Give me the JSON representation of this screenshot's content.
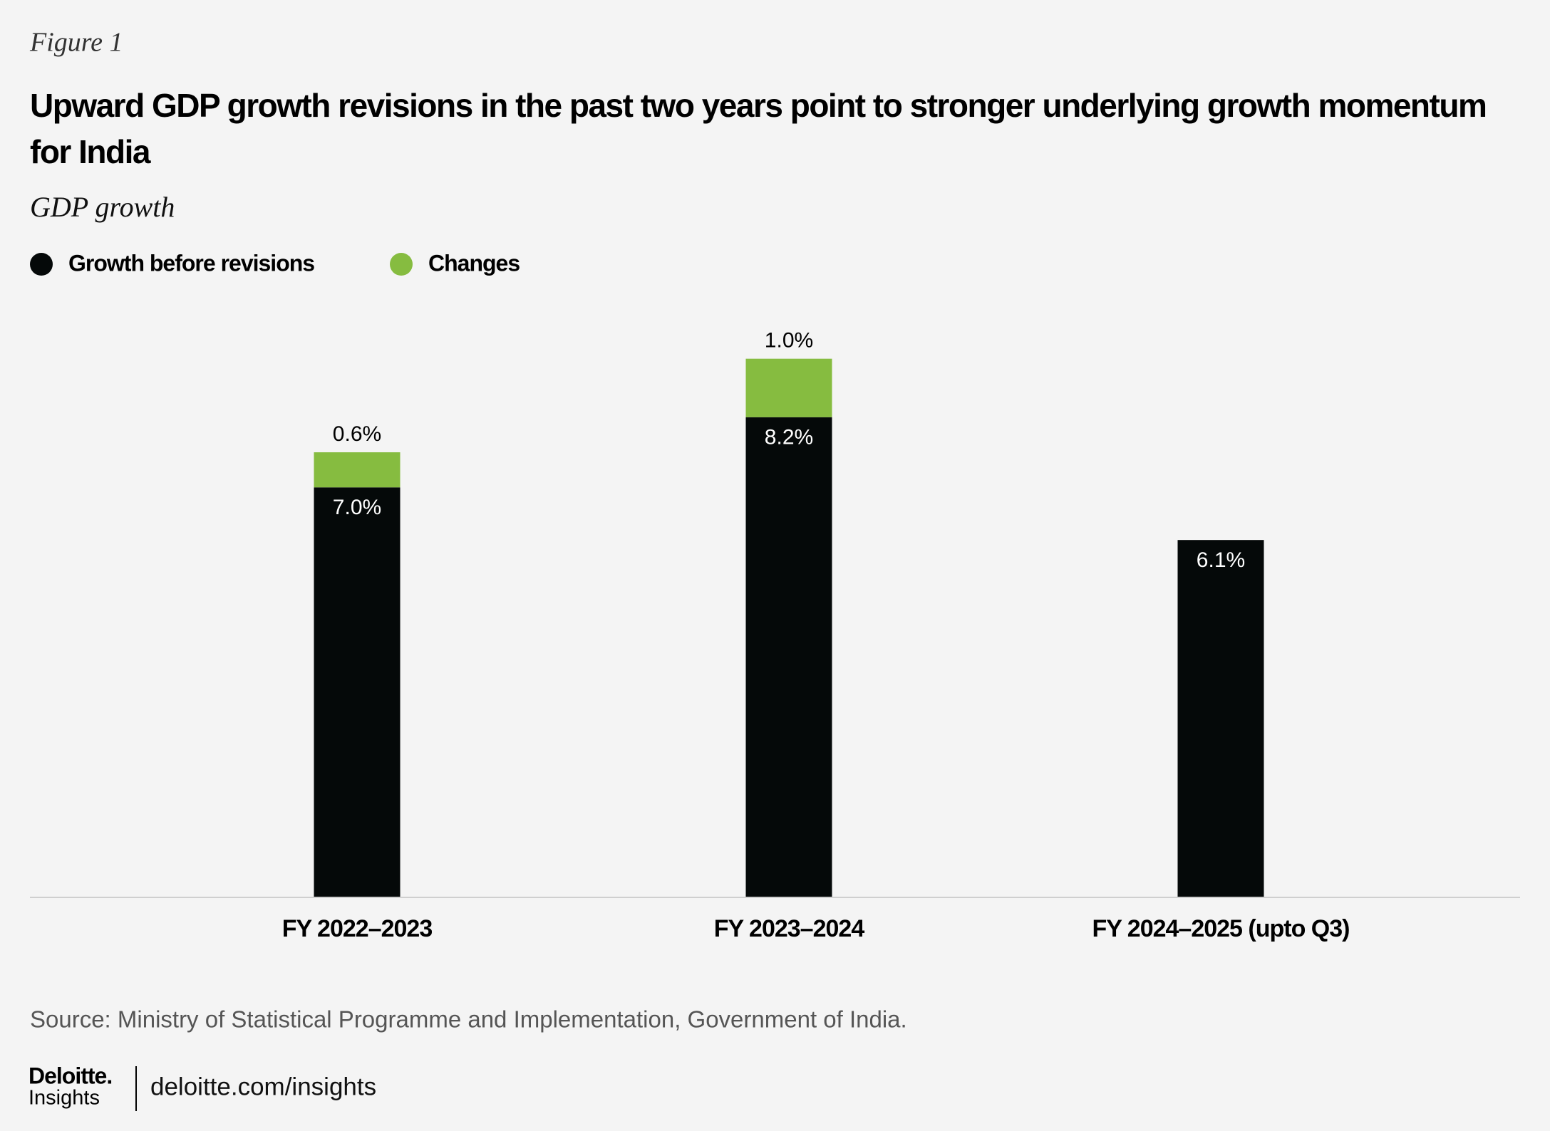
{
  "chart_data": {
    "type": "stacked_bar",
    "figure_label": "Figure 1",
    "title": "Upward GDP growth revisions in the past two years point to stronger underlying growth momentum for India",
    "subtitle": "GDP growth",
    "categories": [
      "FY 2022–2023",
      "FY 2023–2024",
      "FY 2024–2025 (upto Q3)"
    ],
    "series": [
      {
        "name": "Growth before revisions",
        "color": "#050909",
        "values": [
          7.0,
          8.2,
          6.1
        ],
        "value_labels": [
          "7.0%",
          "8.2%",
          "6.1%"
        ]
      },
      {
        "name": "Changes",
        "color": "#86bc40",
        "values": [
          0.6,
          1.0,
          null
        ],
        "value_labels": [
          "0.6%",
          "1.0%",
          null
        ]
      }
    ],
    "ylim": [
      0,
      10
    ],
    "source": "Source: Ministry of Statistical Programme and Implementation, Government of India."
  },
  "footer": {
    "logo": "Deloitte.",
    "logo_sub": "Insights",
    "url": "deloitte.com/insights"
  }
}
